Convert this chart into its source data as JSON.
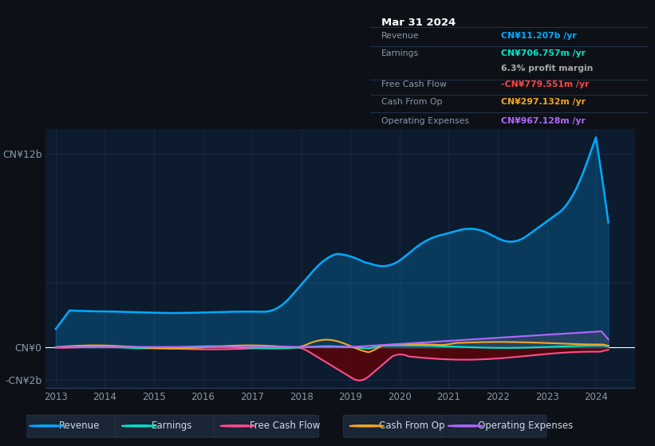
{
  "background_color": "#0d1117",
  "plot_bg_color": "#0d1b2e",
  "ylabel_top": "CN¥12b",
  "ylabel_zero": "CN¥0",
  "ylabel_neg": "-CN¥2b",
  "legend_items": [
    {
      "label": "Revenue",
      "color": "#00aaff"
    },
    {
      "label": "Earnings",
      "color": "#00e5c8"
    },
    {
      "label": "Free Cash Flow",
      "color": "#ff4d8d"
    },
    {
      "label": "Cash From Op",
      "color": "#f5a623"
    },
    {
      "label": "Operating Expenses",
      "color": "#b266ff"
    }
  ],
  "tooltip": {
    "date": "Mar 31 2024",
    "revenue_label": "Revenue",
    "revenue_val": "CN¥11.207b /yr",
    "revenue_color": "#00aaff",
    "earnings_label": "Earnings",
    "earnings_val": "CN¥706.757m /yr",
    "earnings_color": "#00e5c8",
    "profit_margin": "6.3% profit margin",
    "profit_color": "#aaaaaa",
    "fcf_label": "Free Cash Flow",
    "fcf_val": "-CN¥779.551m /yr",
    "fcf_color": "#ff4444",
    "cashop_label": "Cash From Op",
    "cashop_val": "CN¥297.132m /yr",
    "cashop_color": "#f5a623",
    "opex_label": "Operating Expenses",
    "opex_val": "CN¥967.128m /yr",
    "opex_color": "#b266ff"
  },
  "line_color_revenue": "#00aaff",
  "line_color_earnings": "#00e5c8",
  "line_color_fcf": "#ff4d8d",
  "line_color_cashop": "#f5a623",
  "line_color_opex": "#b266ff",
  "grid_color": "#1e3050",
  "zero_line_color": "#ffffff"
}
